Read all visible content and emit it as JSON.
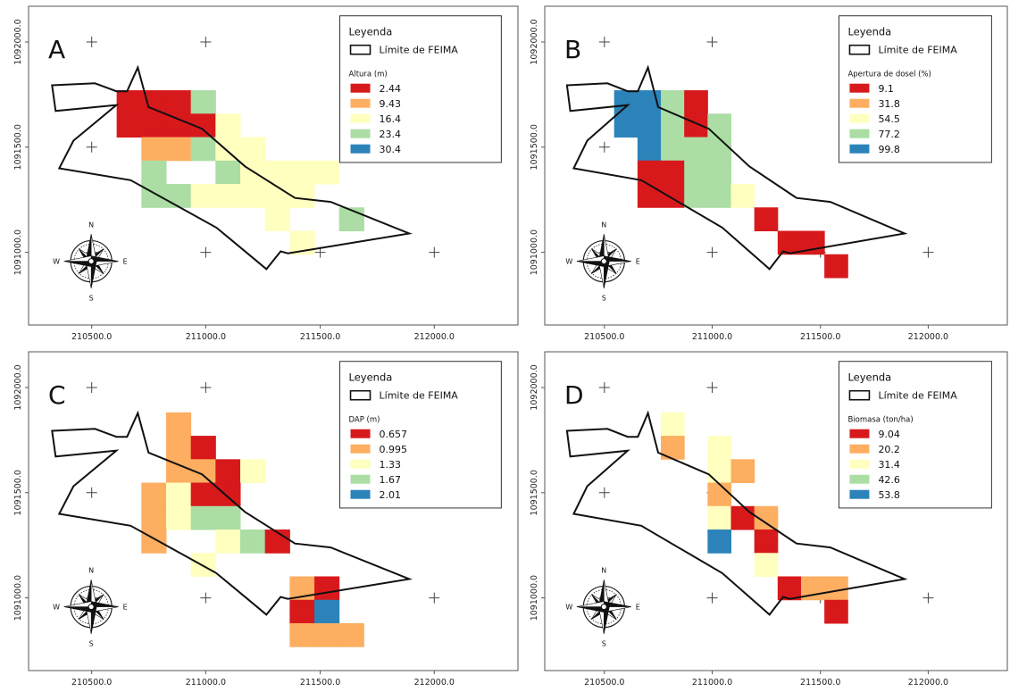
{
  "x_ticks": [
    "210500.0",
    "211000.0",
    "211500.0",
    "212000.0"
  ],
  "y_ticks": [
    "1092000.0",
    "1091500.0",
    "1091000.0"
  ],
  "legend_title": "Leyenda",
  "boundary_label": "Límite de FEIMA",
  "compass": {
    "n": "N",
    "s": "S",
    "e": "E",
    "w": "W"
  },
  "colors": {
    "c1": "#d7191c",
    "c2": "#fdae61",
    "c3": "#ffffbf",
    "c4": "#abdda4",
    "c5": "#2b83ba"
  },
  "panels": [
    {
      "letter": "A",
      "variable": "Altura (m)",
      "classes": [
        "2.44",
        "9.43",
        "16.4",
        "23.4",
        "30.4"
      ],
      "grid": [
        "..........",
        "1114......",
        "11113.....",
        ".22433....",
        ".4..43333.",
        ".4433333..",
        "......3..4",
        ".......3..",
        "..........",
        ".........."
      ]
    },
    {
      "letter": "B",
      "variable": "Apertura de dosel (%)",
      "classes": [
        "9.1",
        "31.8",
        "54.5",
        "77.2",
        "99.8"
      ],
      "grid": [
        "..........",
        "5541......",
        "55414.....",
        ".5444.....",
        ".1144.....",
        ".11443....",
        "......1...",
        ".......11.",
        ".........1",
        ".........."
      ]
    },
    {
      "letter": "C",
      "variable": "DAP (m)",
      "classes": [
        "0.657",
        "0.995",
        "1.33",
        "1.67",
        "2.01"
      ],
      "grid": [
        "..2.......",
        "..21......",
        "..2213....",
        ".2311.....",
        ".2344.....",
        ".2..341...",
        "...3......",
        ".......21.",
        ".......15.",
        ".......222"
      ]
    },
    {
      "letter": "D",
      "variable": "Biomasa (ton/ha)",
      "classes": [
        "9.04",
        "20.2",
        "31.4",
        "42.6",
        "53.8"
      ],
      "grid": [
        "..3.......",
        "..2.3.....",
        "....32....",
        "....2.....",
        "....312...",
        "....5.1...",
        "......3...",
        ".......122",
        ".........1",
        ".........."
      ]
    }
  ]
}
